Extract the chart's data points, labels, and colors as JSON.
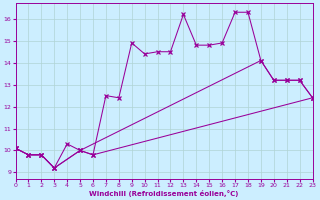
{
  "background_color": "#cceeff",
  "grid_color": "#b0d4d4",
  "line_color": "#990099",
  "xlabel": "Windchill (Refroidissement éolien,°C)",
  "xlim": [
    0,
    23
  ],
  "ylim": [
    8.7,
    16.7
  ],
  "yticks": [
    9,
    10,
    11,
    12,
    13,
    14,
    15,
    16
  ],
  "xticks": [
    0,
    1,
    2,
    3,
    4,
    5,
    6,
    7,
    8,
    9,
    10,
    11,
    12,
    13,
    14,
    15,
    16,
    17,
    18,
    19,
    20,
    21,
    22,
    23
  ],
  "line_bottom_x": [
    0,
    1,
    2,
    3,
    5,
    6,
    23
  ],
  "line_bottom_y": [
    10.1,
    9.8,
    9.8,
    9.2,
    10.0,
    9.8,
    12.4
  ],
  "line_mid_x": [
    0,
    1,
    2,
    3,
    5,
    19,
    20,
    21,
    22,
    23
  ],
  "line_mid_y": [
    10.1,
    9.8,
    9.8,
    9.2,
    10.0,
    14.1,
    13.2,
    13.2,
    13.2,
    12.4
  ],
  "line_top_x": [
    0,
    1,
    2,
    3,
    4,
    5,
    6,
    7,
    8,
    9,
    10,
    11,
    12,
    13,
    14,
    15,
    16,
    17,
    18,
    19,
    20,
    21,
    22,
    23
  ],
  "line_top_y": [
    10.1,
    9.8,
    9.8,
    9.2,
    10.3,
    10.0,
    9.8,
    12.5,
    12.4,
    14.9,
    14.4,
    14.5,
    14.5,
    16.2,
    14.8,
    14.8,
    14.9,
    16.3,
    16.3,
    14.1,
    13.2,
    13.2,
    13.2,
    12.4
  ]
}
